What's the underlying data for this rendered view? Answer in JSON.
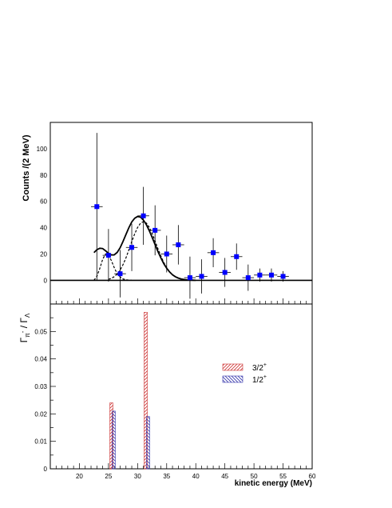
{
  "chart_data": [
    {
      "type": "scatter",
      "ylabel": "Counts /(2 MeV)",
      "xlim": [
        15,
        60
      ],
      "ylim": [
        -18,
        120
      ],
      "y_ticks": [
        0,
        20,
        40,
        60,
        80,
        100
      ],
      "grid": false,
      "series": [
        {
          "kind": "points_with_errors",
          "color": "#0000ff",
          "x": [
            23,
            25,
            27,
            29,
            31,
            33,
            35,
            37,
            39,
            41,
            43,
            45,
            47,
            49,
            51,
            53,
            55
          ],
          "y": [
            56,
            19,
            5,
            25,
            49,
            38,
            20,
            27,
            2,
            3,
            21,
            6,
            18,
            2,
            4,
            4,
            3
          ],
          "yerr": [
            56,
            20,
            18,
            18,
            22,
            19,
            14,
            15,
            16,
            13,
            11,
            11,
            10,
            10,
            5,
            5,
            4
          ],
          "xerr": 1
        },
        {
          "kind": "fit_total",
          "color": "#000000",
          "dash": "solid",
          "x": [
            22.5,
            23,
            23.5,
            24,
            24.5,
            25,
            25.5,
            26,
            26.5,
            27,
            27.5,
            28,
            28.5,
            29,
            29.5,
            30,
            30.5,
            31,
            31.5,
            32,
            32.5,
            33,
            33.5,
            34,
            34.5,
            35,
            35.5,
            36,
            36.5,
            37,
            37.5,
            38,
            38.5,
            39,
            39.5,
            40
          ],
          "y": [
            21,
            23.2,
            24.4,
            24.1,
            22.4,
            20.5,
            19.3,
            19.4,
            21.2,
            24.8,
            29.6,
            34.9,
            40,
            44.3,
            47.2,
            48.5,
            48,
            45.8,
            42.3,
            37.8,
            32.6,
            27.2,
            21.9,
            17,
            12.7,
            9.2,
            6.4,
            4.2,
            2.7,
            1.7,
            1,
            0.6,
            0.3,
            0.2,
            0.1,
            0
          ]
        },
        {
          "kind": "fit_component",
          "color": "#000000",
          "dash": "dashed",
          "x": [
            22.5,
            23,
            23.5,
            24,
            24.5,
            25,
            25.5,
            26,
            26.5,
            27,
            27.5,
            28,
            28.5,
            29
          ],
          "y": [
            0,
            3,
            9,
            16,
            20,
            19,
            15,
            9.5,
            5,
            2.5,
            1,
            0.4,
            0.1,
            0
          ]
        },
        {
          "kind": "fit_component",
          "color": "#000000",
          "dash": "dashed",
          "x": [
            25,
            25.5,
            26,
            26.5,
            27,
            27.5,
            28,
            28.5,
            29,
            29.5,
            30,
            30.5,
            31,
            31.5,
            32,
            32.5,
            33,
            33.5,
            34,
            34.5,
            35,
            35.5,
            36,
            36.5,
            37,
            37.5,
            38,
            38.5,
            39,
            39.5,
            40
          ],
          "y": [
            0.8,
            1.5,
            2.8,
            4.8,
            7.8,
            11.9,
            17.1,
            23.1,
            29.4,
            35.3,
            40.1,
            43.4,
            44.6,
            43.5,
            40.3,
            35.6,
            29.9,
            24,
            18.5,
            13.6,
            9.6,
            6.5,
            4.2,
            2.6,
            1.5,
            0.9,
            0.5,
            0.3,
            0.1,
            0.1,
            0
          ]
        }
      ]
    },
    {
      "type": "bar",
      "ylabel": "Γ_{π⁻} / Γ_Λ",
      "ylabel_main": "Γ",
      "ylabel_main_sub": "π",
      "ylabel_main_sup": "-",
      "ylabel_sep": " / ",
      "ylabel_den": "Γ",
      "ylabel_den_sub": "Λ",
      "xlabel": "kinetic energy (MeV)",
      "xlim": [
        15,
        60
      ],
      "ylim": [
        0,
        0.06
      ],
      "x_ticks": [
        20,
        25,
        30,
        35,
        40,
        45,
        50,
        55,
        60
      ],
      "y_ticks": [
        0,
        0.01,
        0.02,
        0.03,
        0.04,
        0.05
      ],
      "y_tick_labels": [
        "0",
        "0.01",
        "0.02",
        "0.03",
        "0.04",
        "0.05"
      ],
      "legend_position": "right",
      "series": [
        {
          "name": "3/2",
          "name_sup": "+",
          "color": "#cc3333",
          "hatch": "diagonal-right",
          "x": [
            25.5,
            31.4
          ],
          "values": [
            0.024,
            0.057
          ]
        },
        {
          "name": "1/2",
          "name_sup": "+",
          "color": "#3333aa",
          "hatch": "diagonal-left",
          "x": [
            25.9,
            31.8
          ],
          "values": [
            0.021,
            0.019
          ]
        }
      ]
    }
  ]
}
